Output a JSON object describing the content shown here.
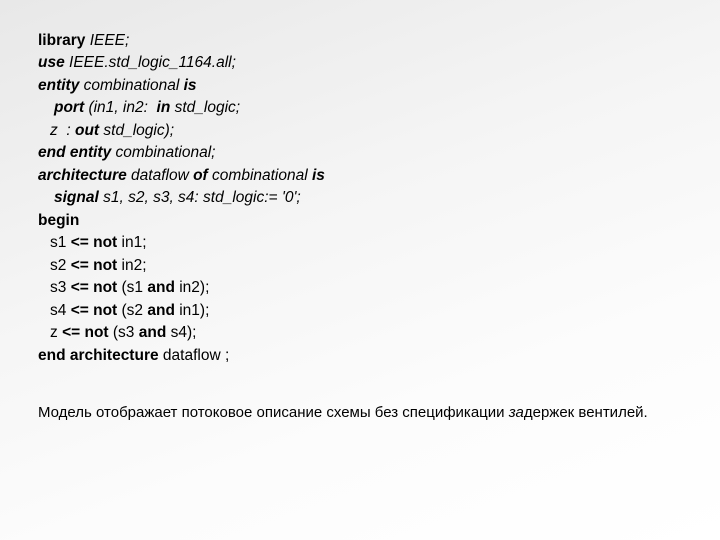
{
  "code": {
    "font_size_pt": 12,
    "color": "#000000",
    "lines": [
      {
        "indent": 0,
        "segments": [
          {
            "t": "library",
            "b": true,
            "i": false
          },
          {
            "t": " IEEE;",
            "b": false,
            "i": true
          }
        ]
      },
      {
        "indent": 0,
        "segments": [
          {
            "t": "use",
            "b": true,
            "i": true
          },
          {
            "t": " IEEE.std_logic_1164.all;",
            "b": false,
            "i": true
          }
        ]
      },
      {
        "indent": 0,
        "segments": [
          {
            "t": "entity",
            "b": true,
            "i": true
          },
          {
            "t": " combinational ",
            "b": false,
            "i": true
          },
          {
            "t": "is",
            "b": true,
            "i": true
          }
        ]
      },
      {
        "indent": 1,
        "segments": [
          {
            "t": "port",
            "b": true,
            "i": true
          },
          {
            "t": " (in1, in2:  ",
            "b": false,
            "i": true
          },
          {
            "t": "in",
            "b": true,
            "i": true
          },
          {
            "t": " std_logic;",
            "b": false,
            "i": true
          }
        ]
      },
      {
        "indent": 2,
        "segments": [
          {
            "t": "z  : ",
            "b": false,
            "i": true
          },
          {
            "t": "out",
            "b": true,
            "i": true
          },
          {
            "t": " std_logic);",
            "b": false,
            "i": true
          }
        ]
      },
      {
        "indent": 0,
        "segments": [
          {
            "t": "end entity",
            "b": true,
            "i": true
          },
          {
            "t": " combinational;",
            "b": false,
            "i": true
          }
        ]
      },
      {
        "indent": 0,
        "segments": [
          {
            "t": "architecture",
            "b": true,
            "i": true
          },
          {
            "t": " dataflow ",
            "b": false,
            "i": true
          },
          {
            "t": "of",
            "b": true,
            "i": true
          },
          {
            "t": " combinational ",
            "b": false,
            "i": true
          },
          {
            "t": "is",
            "b": true,
            "i": true
          }
        ]
      },
      {
        "indent": 1,
        "segments": [
          {
            "t": "signal",
            "b": true,
            "i": true
          },
          {
            "t": " s1, s2, s3, s4: std_logic:= '0';",
            "b": false,
            "i": true
          }
        ]
      },
      {
        "indent": 0,
        "segments": [
          {
            "t": "begin",
            "b": true,
            "i": false
          }
        ]
      },
      {
        "indent": 2,
        "segments": [
          {
            "t": "s1 ",
            "b": false,
            "i": false
          },
          {
            "t": "<= not",
            "b": true,
            "i": false
          },
          {
            "t": " in1;",
            "b": false,
            "i": false
          }
        ]
      },
      {
        "indent": 2,
        "segments": [
          {
            "t": "s2 ",
            "b": false,
            "i": false
          },
          {
            "t": "<= not",
            "b": true,
            "i": false
          },
          {
            "t": " in2;",
            "b": false,
            "i": false
          }
        ]
      },
      {
        "indent": 2,
        "segments": [
          {
            "t": "s3 ",
            "b": false,
            "i": false
          },
          {
            "t": "<= not",
            "b": true,
            "i": false
          },
          {
            "t": " (s1 ",
            "b": false,
            "i": false
          },
          {
            "t": "and",
            "b": true,
            "i": false
          },
          {
            "t": " in2);",
            "b": false,
            "i": false
          }
        ]
      },
      {
        "indent": 2,
        "segments": [
          {
            "t": "s4 ",
            "b": false,
            "i": false
          },
          {
            "t": "<= not",
            "b": true,
            "i": false
          },
          {
            "t": " (s2 ",
            "b": false,
            "i": false
          },
          {
            "t": "and",
            "b": true,
            "i": false
          },
          {
            "t": " in1);",
            "b": false,
            "i": false
          }
        ]
      },
      {
        "indent": 2,
        "segments": [
          {
            "t": "z ",
            "b": false,
            "i": false
          },
          {
            "t": "<= not ",
            "b": true,
            "i": false
          },
          {
            "t": "(s3 ",
            "b": false,
            "i": false
          },
          {
            "t": "and",
            "b": true,
            "i": false
          },
          {
            "t": " s4);",
            "b": false,
            "i": false
          }
        ]
      },
      {
        "indent": 0,
        "segments": [
          {
            "t": "end architecture",
            "b": true,
            "i": false
          },
          {
            "t": " dataflow ;",
            "b": false,
            "i": false
          }
        ]
      }
    ]
  },
  "explanation": {
    "prefix": "Модель отображает потоковое описание схемы без спецификации ",
    "italic_part": "за",
    "suffix": "держек вентилей."
  },
  "background": {
    "gradient_from": "#e8e8e8",
    "gradient_to": "#ffffff"
  }
}
